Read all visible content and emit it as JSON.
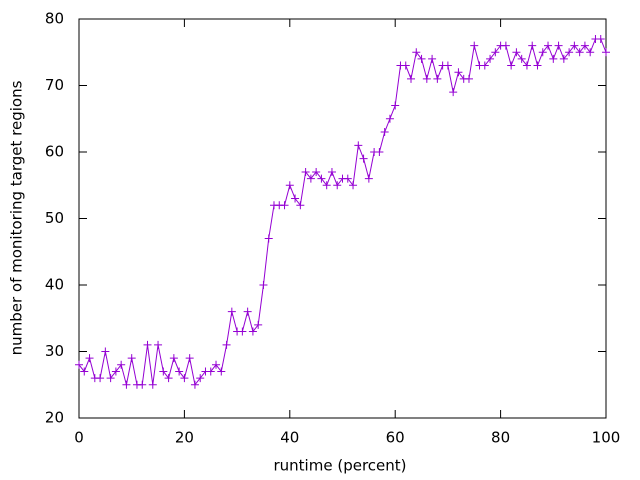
{
  "chart_data": {
    "type": "line",
    "xlabel": "runtime (percent)",
    "ylabel": "number of monitoring target regions",
    "x": [
      0,
      1,
      2,
      3,
      4,
      5,
      6,
      7,
      8,
      9,
      10,
      11,
      12,
      13,
      14,
      15,
      16,
      17,
      18,
      19,
      20,
      21,
      22,
      23,
      24,
      25,
      26,
      27,
      28,
      29,
      30,
      31,
      32,
      33,
      34,
      35,
      36,
      37,
      38,
      39,
      40,
      41,
      42,
      43,
      44,
      45,
      46,
      47,
      48,
      49,
      50,
      51,
      52,
      53,
      54,
      55,
      56,
      57,
      58,
      59,
      60,
      61,
      62,
      63,
      64,
      65,
      66,
      67,
      68,
      69,
      70,
      71,
      72,
      73,
      74,
      75,
      76,
      77,
      78,
      79,
      80,
      81,
      82,
      83,
      84,
      85,
      86,
      87,
      88,
      89,
      90,
      91,
      92,
      93,
      94,
      95,
      96,
      97,
      98,
      99,
      100
    ],
    "series": [
      {
        "color": "#9400d3",
        "values": [
          28,
          27,
          29,
          26,
          26,
          30,
          26,
          27,
          28,
          25,
          29,
          25,
          25,
          31,
          25,
          31,
          27,
          26,
          29,
          27,
          26,
          29,
          25,
          26,
          27,
          27,
          28,
          27,
          31,
          36,
          33,
          33,
          36,
          33,
          34,
          40,
          47,
          52,
          52,
          52,
          55,
          53,
          52,
          57,
          56,
          57,
          56,
          55,
          57,
          55,
          56,
          56,
          55,
          61,
          59,
          56,
          60,
          60,
          63,
          65,
          67,
          73,
          73,
          71,
          75,
          74,
          71,
          74,
          71,
          73,
          73,
          69,
          72,
          71,
          71,
          76,
          73,
          73,
          74,
          75,
          76,
          76,
          73,
          75,
          74,
          73,
          76,
          73,
          75,
          76,
          74,
          76,
          74,
          75,
          76,
          75,
          76,
          75,
          77,
          77,
          75
        ]
      }
    ],
    "xlim": [
      0,
      100
    ],
    "xticks": [
      0,
      20,
      40,
      60,
      80,
      100
    ],
    "ylim": [
      20,
      80
    ],
    "yticks": [
      20,
      30,
      40,
      50,
      60,
      70,
      80
    ]
  }
}
